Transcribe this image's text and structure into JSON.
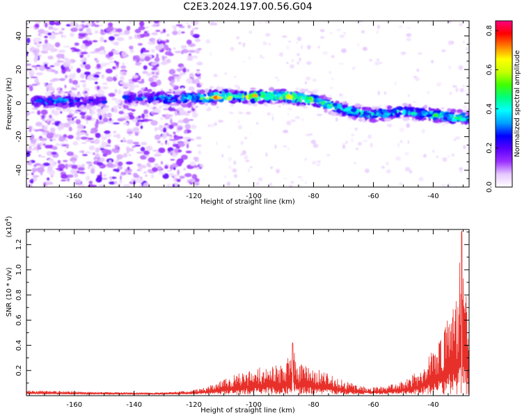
{
  "title": "C2E3.2024.197.00.56.G04",
  "chart_data": [
    {
      "type": "heatmap",
      "title": "C2E3.2024.197.00.56.G04",
      "xlabel": "Height of straight line (km)",
      "ylabel": "Frequency (Hz)",
      "xlim": [
        -176,
        -28
      ],
      "ylim": [
        -50,
        49
      ],
      "x_ticks": [
        -160,
        -140,
        -120,
        -100,
        -80,
        -60,
        -40
      ],
      "y_ticks": [
        -40,
        -20,
        0,
        20,
        40
      ],
      "colorbar": {
        "label": "Normalized spectral amplitude",
        "range": [
          0.0,
          0.85
        ],
        "ticks": [
          0.0,
          0.2,
          0.4,
          0.6,
          0.8
        ],
        "colors": [
          "#ffffff",
          "#e6c8ff",
          "#9b30ff",
          "#5a00ff",
          "#0000ff",
          "#00a0ff",
          "#00ffff",
          "#00ff80",
          "#40ff00",
          "#c8ff00",
          "#ffff00",
          "#ff8000",
          "#ff0000",
          "#ff0080"
        ]
      },
      "ridge": {
        "x": [
          -174,
          -165,
          -155,
          -143,
          -130,
          -120,
          -110,
          -100,
          -90,
          -80,
          -70,
          -60,
          -50,
          -40,
          -28
        ],
        "y": [
          1,
          1,
          1,
          3,
          3,
          3,
          4,
          4,
          4,
          2,
          -4,
          -7,
          -5,
          -7,
          -9
        ]
      },
      "ridge_strength": {
        "x": [
          -174,
          -165,
          -155,
          -143,
          -130,
          -120,
          -113,
          -105,
          -100,
          -95,
          -87,
          -80,
          -70,
          -60,
          -50,
          -40,
          -33,
          -28
        ],
        "y": [
          0.3,
          0.35,
          0.25,
          0.3,
          0.35,
          0.4,
          0.7,
          0.5,
          0.65,
          0.5,
          0.65,
          0.5,
          0.45,
          0.4,
          0.4,
          0.45,
          0.5,
          0.4
        ]
      }
    },
    {
      "type": "line",
      "xlabel": "Height of straight line (km)",
      "ylabel": "SNR (10 * v/v)",
      "y_multiplier": "(x10",
      "y_multiplier_exp": "4",
      "y_multiplier_close": ")",
      "xlim": [
        -176,
        -28
      ],
      "ylim": [
        0,
        1.32
      ],
      "x_ticks": [
        -160,
        -140,
        -120,
        -100,
        -80,
        -60,
        -40
      ],
      "y_ticks": [
        0.2,
        0.4,
        0.6,
        0.8,
        1.0,
        1.2
      ],
      "y_tick_labels": [
        "0.2",
        "0.4",
        "0.6",
        "0.8",
        "1.0",
        "1.2"
      ],
      "series": [
        {
          "color": "#e8302a",
          "envelope": {
            "x": [
              -176,
              -170,
              -160,
              -150,
              -140,
              -130,
              -125,
              -120,
              -115,
              -110,
              -105,
              -100,
              -95,
              -90,
              -87,
              -85,
              -80,
              -75,
              -70,
              -65,
              -60,
              -55,
              -50,
              -45,
              -42,
              -40,
              -38,
              -36,
              -34,
              -32,
              -30.5,
              -29,
              -28
            ],
            "y": [
              0.045,
              0.04,
              0.035,
              0.03,
              0.025,
              0.025,
              0.035,
              0.05,
              0.08,
              0.13,
              0.18,
              0.22,
              0.24,
              0.25,
              0.42,
              0.27,
              0.23,
              0.18,
              0.12,
              0.08,
              0.07,
              0.08,
              0.12,
              0.2,
              0.3,
              0.38,
              0.45,
              0.55,
              0.7,
              0.8,
              1.32,
              0.85,
              0.55
            ]
          },
          "floor": 0.01
        }
      ]
    }
  ]
}
